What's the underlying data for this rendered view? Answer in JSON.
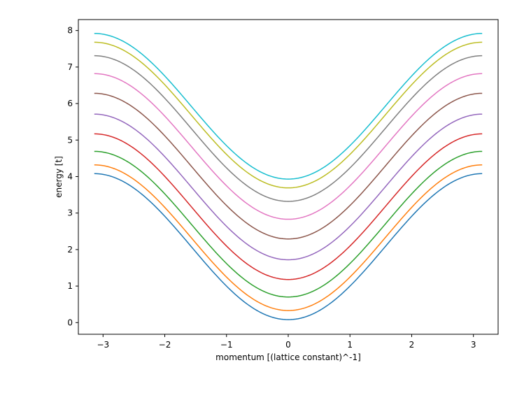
{
  "chart_data": {
    "type": "line",
    "title": "",
    "xlabel": "momentum [(lattice constant)^-1]",
    "ylabel": "energy [t]",
    "xlim": [
      -3.4,
      3.4
    ],
    "ylim": [
      -0.32,
      8.3
    ],
    "xticks": [
      -3,
      -2,
      -1,
      0,
      1,
      2,
      3
    ],
    "xtick_labels": [
      "−3",
      "−2",
      "−1",
      "0",
      "1",
      "2",
      "3"
    ],
    "yticks": [
      0,
      1,
      2,
      3,
      4,
      5,
      6,
      7,
      8
    ],
    "ytick_labels": [
      "0",
      "1",
      "2",
      "3",
      "4",
      "5",
      "6",
      "7",
      "8"
    ],
    "grid": false,
    "legend": "none",
    "x_range": [
      -3.14159,
      3.14159
    ],
    "series": [
      {
        "color": "#1f77b4",
        "values": {
          "k": [
            -3.14159,
            -2.5,
            -2.0,
            -1.5,
            -1.0,
            -0.5,
            0.0,
            0.5,
            1.0,
            1.5,
            2.0,
            2.5,
            3.14159
          ],
          "e": [
            4.08,
            3.67,
            2.91,
            1.94,
            1.01,
            0.33,
            0.08,
            0.33,
            1.01,
            1.94,
            2.91,
            3.67,
            4.08
          ]
        }
      },
      {
        "color": "#ff7f0e",
        "values": {
          "k": [
            -3.14159,
            -2.5,
            -2.0,
            -1.5,
            -1.0,
            -0.5,
            0.0,
            0.5,
            1.0,
            1.5,
            2.0,
            2.5,
            3.14159
          ],
          "e": [
            4.32,
            3.92,
            3.16,
            2.21,
            1.29,
            0.59,
            0.33,
            0.59,
            1.29,
            2.21,
            3.16,
            3.92,
            4.32
          ]
        }
      },
      {
        "color": "#2ca02c",
        "values": {
          "k": [
            -3.14159,
            -2.5,
            -2.0,
            -1.5,
            -1.0,
            -0.5,
            0.0,
            0.5,
            1.0,
            1.5,
            2.0,
            2.5,
            3.14159
          ],
          "e": [
            4.69,
            4.29,
            3.53,
            2.59,
            1.66,
            0.96,
            0.7,
            0.96,
            1.66,
            2.59,
            3.53,
            4.29,
            4.69
          ]
        }
      },
      {
        "color": "#d62728",
        "values": {
          "k": [
            -3.14159,
            -2.5,
            -2.0,
            -1.5,
            -1.0,
            -0.5,
            0.0,
            0.5,
            1.0,
            1.5,
            2.0,
            2.5,
            3.14159
          ],
          "e": [
            5.17,
            4.77,
            4.01,
            3.06,
            2.14,
            1.44,
            1.18,
            1.44,
            2.14,
            3.06,
            4.01,
            4.77,
            5.17
          ]
        }
      },
      {
        "color": "#9467bd",
        "values": {
          "k": [
            -3.14159,
            -2.5,
            -2.0,
            -1.5,
            -1.0,
            -0.5,
            0.0,
            0.5,
            1.0,
            1.5,
            2.0,
            2.5,
            3.14159
          ],
          "e": [
            5.71,
            5.31,
            4.55,
            3.6,
            2.68,
            1.98,
            1.72,
            1.98,
            2.68,
            3.6,
            4.55,
            5.31,
            5.71
          ]
        }
      },
      {
        "color": "#8c564b",
        "values": {
          "k": [
            -3.14159,
            -2.5,
            -2.0,
            -1.5,
            -1.0,
            -0.5,
            0.0,
            0.5,
            1.0,
            1.5,
            2.0,
            2.5,
            3.14159
          ],
          "e": [
            6.28,
            5.88,
            5.12,
            4.17,
            3.25,
            2.55,
            2.29,
            2.55,
            3.25,
            4.17,
            5.12,
            5.88,
            6.28
          ]
        }
      },
      {
        "color": "#e377c2",
        "values": {
          "k": [
            -3.14159,
            -2.5,
            -2.0,
            -1.5,
            -1.0,
            -0.5,
            0.0,
            0.5,
            1.0,
            1.5,
            2.0,
            2.5,
            3.14159
          ],
          "e": [
            6.82,
            6.42,
            5.66,
            4.71,
            3.79,
            3.09,
            2.83,
            3.09,
            3.79,
            4.71,
            5.66,
            6.42,
            6.82
          ]
        }
      },
      {
        "color": "#7f7f7f",
        "values": {
          "k": [
            -3.14159,
            -2.5,
            -2.0,
            -1.5,
            -1.0,
            -0.5,
            0.0,
            0.5,
            1.0,
            1.5,
            2.0,
            2.5,
            3.14159
          ],
          "e": [
            7.31,
            6.91,
            6.15,
            5.2,
            4.28,
            3.58,
            3.32,
            3.58,
            4.28,
            5.2,
            6.15,
            6.91,
            7.31
          ]
        }
      },
      {
        "color": "#bcbd22",
        "values": {
          "k": [
            -3.14159,
            -2.5,
            -2.0,
            -1.5,
            -1.0,
            -0.5,
            0.0,
            0.5,
            1.0,
            1.5,
            2.0,
            2.5,
            3.14159
          ],
          "e": [
            7.68,
            7.28,
            6.52,
            5.57,
            4.65,
            3.95,
            3.69,
            3.95,
            4.65,
            5.57,
            6.52,
            7.28,
            7.68
          ]
        }
      },
      {
        "color": "#17becf",
        "values": {
          "k": [
            -3.14159,
            -2.5,
            -2.0,
            -1.5,
            -1.0,
            -0.5,
            0.0,
            0.5,
            1.0,
            1.5,
            2.0,
            2.5,
            3.14159
          ],
          "e": [
            7.92,
            7.52,
            6.76,
            5.81,
            4.89,
            4.19,
            3.93,
            4.19,
            4.89,
            5.81,
            6.76,
            7.52,
            7.92
          ]
        }
      }
    ]
  }
}
